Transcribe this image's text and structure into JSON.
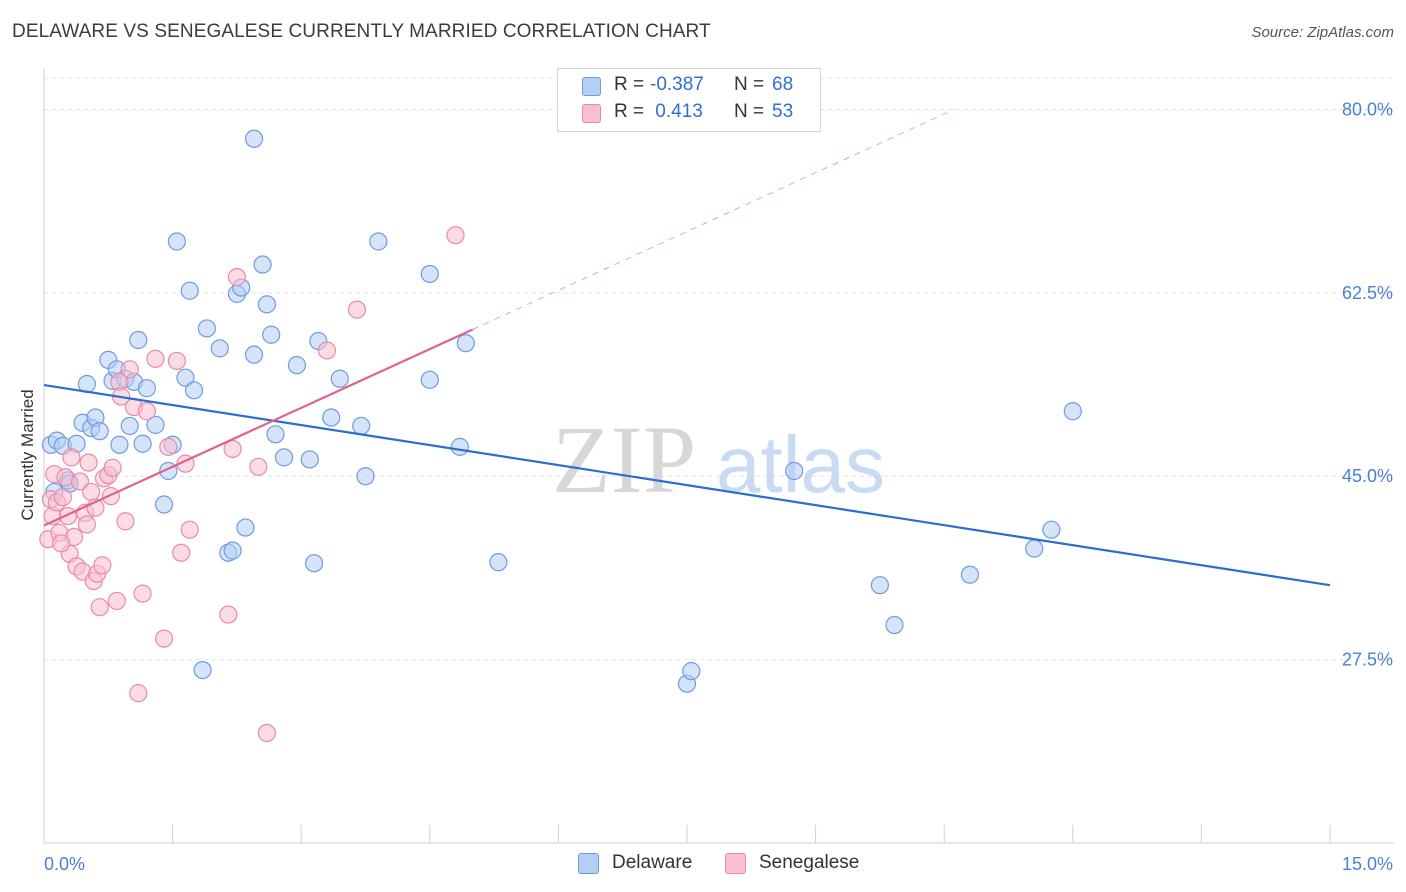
{
  "title": "DELAWARE VS SENEGALESE CURRENTLY MARRIED CORRELATION CHART",
  "source": "Source: ZipAtlas.com",
  "watermark": {
    "zip": "ZIP",
    "atlas": "atlas"
  },
  "legend": {
    "rows": [
      {
        "r_label": "R =",
        "r_value": "-0.387",
        "n_label": "N =",
        "n_value": "68"
      },
      {
        "r_label": "R =",
        "r_value": " 0.413",
        "n_label": "N =",
        "n_value": "53"
      }
    ]
  },
  "bottom_legend": [
    "Delaware",
    "Senegalese"
  ],
  "colors": {
    "delaware_fill": "#b5cef4",
    "delaware_stroke": "#6d9ce0",
    "delaware_line": "#2a6fd0",
    "senegalese_fill": "#f7bfd0",
    "senegalese_stroke": "#e98aa8",
    "senegalese_line": "#e0628c",
    "tick_text": "#4a7fd6",
    "grid": "#e3e3e3"
  },
  "chart_data": {
    "type": "scatter",
    "title": "DELAWARE VS SENEGALESE CURRENTLY MARRIED CORRELATION CHART",
    "xlabel": "",
    "ylabel": "Currently Married",
    "xlim": [
      0.0,
      15.0
    ],
    "ylim": [
      10.0,
      83.0
    ],
    "x_tick_labels": [
      "0.0%",
      "15.0%"
    ],
    "y_ticks": [
      27.5,
      45.0,
      62.5,
      80.0
    ],
    "y_tick_labels": [
      "27.5%",
      "45.0%",
      "62.5%",
      "80.0%"
    ],
    "grid": "horizontal dashed",
    "legend_position": "top-center",
    "series": [
      {
        "name": "Delaware",
        "trend": {
          "x": [
            0.0,
            15.0
          ],
          "y": [
            53.7,
            34.6
          ]
        },
        "points": [
          [
            0.08,
            48.0
          ],
          [
            0.15,
            48.4
          ],
          [
            0.22,
            47.9
          ],
          [
            0.28,
            44.6
          ],
          [
            0.38,
            48.1
          ],
          [
            0.45,
            50.1
          ],
          [
            0.5,
            53.8
          ],
          [
            0.55,
            49.6
          ],
          [
            0.6,
            50.6
          ],
          [
            0.65,
            49.3
          ],
          [
            0.75,
            56.1
          ],
          [
            0.8,
            54.1
          ],
          [
            0.85,
            55.2
          ],
          [
            0.88,
            48.0
          ],
          [
            0.95,
            54.3
          ],
          [
            1.0,
            49.8
          ],
          [
            1.05,
            54.0
          ],
          [
            1.1,
            58.0
          ],
          [
            1.15,
            48.1
          ],
          [
            1.2,
            53.4
          ],
          [
            1.3,
            49.9
          ],
          [
            1.4,
            42.3
          ],
          [
            1.45,
            45.5
          ],
          [
            1.5,
            48.0
          ],
          [
            1.55,
            67.4
          ],
          [
            1.65,
            54.4
          ],
          [
            1.7,
            62.7
          ],
          [
            1.75,
            53.2
          ],
          [
            1.85,
            26.5
          ],
          [
            1.9,
            59.1
          ],
          [
            2.05,
            57.2
          ],
          [
            2.15,
            37.7
          ],
          [
            2.2,
            37.9
          ],
          [
            2.25,
            62.4
          ],
          [
            2.3,
            63.0
          ],
          [
            2.35,
            40.1
          ],
          [
            2.45,
            56.6
          ],
          [
            2.45,
            77.2
          ],
          [
            2.55,
            65.2
          ],
          [
            2.6,
            61.4
          ],
          [
            2.65,
            58.5
          ],
          [
            2.7,
            49.0
          ],
          [
            2.8,
            46.8
          ],
          [
            2.95,
            55.6
          ],
          [
            3.1,
            46.6
          ],
          [
            3.15,
            36.7
          ],
          [
            3.2,
            57.9
          ],
          [
            3.35,
            50.6
          ],
          [
            3.45,
            54.3
          ],
          [
            3.7,
            49.8
          ],
          [
            3.75,
            45.0
          ],
          [
            3.9,
            67.4
          ],
          [
            4.5,
            64.3
          ],
          [
            4.5,
            54.2
          ],
          [
            4.85,
            47.8
          ],
          [
            4.92,
            57.7
          ],
          [
            5.3,
            36.8
          ],
          [
            7.5,
            25.2
          ],
          [
            7.55,
            26.4
          ],
          [
            8.75,
            45.5
          ],
          [
            9.75,
            34.6
          ],
          [
            9.92,
            30.8
          ],
          [
            10.8,
            35.6
          ],
          [
            11.55,
            38.1
          ],
          [
            11.75,
            39.9
          ],
          [
            12.0,
            51.2
          ],
          [
            0.12,
            43.5
          ],
          [
            0.3,
            44.3
          ]
        ]
      },
      {
        "name": "Senegalese",
        "trend": {
          "x": [
            0.0,
            5.0
          ],
          "y": [
            40.3,
            59.0
          ]
        },
        "points": [
          [
            0.05,
            39.0
          ],
          [
            0.08,
            42.8
          ],
          [
            0.1,
            41.2
          ],
          [
            0.12,
            45.2
          ],
          [
            0.15,
            42.5
          ],
          [
            0.18,
            39.6
          ],
          [
            0.22,
            43.0
          ],
          [
            0.25,
            44.9
          ],
          [
            0.28,
            41.2
          ],
          [
            0.3,
            37.6
          ],
          [
            0.32,
            46.8
          ],
          [
            0.35,
            39.2
          ],
          [
            0.38,
            36.4
          ],
          [
            0.42,
            44.5
          ],
          [
            0.45,
            35.9
          ],
          [
            0.48,
            41.5
          ],
          [
            0.5,
            40.4
          ],
          [
            0.52,
            46.3
          ],
          [
            0.55,
            43.5
          ],
          [
            0.58,
            35.0
          ],
          [
            0.62,
            35.7
          ],
          [
            0.65,
            32.5
          ],
          [
            0.68,
            36.5
          ],
          [
            0.7,
            44.8
          ],
          [
            0.75,
            45.1
          ],
          [
            0.78,
            43.1
          ],
          [
            0.8,
            45.8
          ],
          [
            0.85,
            33.1
          ],
          [
            0.88,
            54.0
          ],
          [
            0.9,
            52.6
          ],
          [
            0.95,
            40.7
          ],
          [
            1.0,
            55.2
          ],
          [
            1.05,
            51.6
          ],
          [
            1.1,
            24.3
          ],
          [
            1.15,
            33.8
          ],
          [
            1.2,
            51.2
          ],
          [
            1.3,
            56.2
          ],
          [
            1.4,
            29.5
          ],
          [
            1.45,
            47.8
          ],
          [
            1.55,
            56.0
          ],
          [
            1.6,
            37.7
          ],
          [
            1.65,
            46.2
          ],
          [
            1.7,
            39.9
          ],
          [
            2.15,
            31.8
          ],
          [
            2.2,
            47.6
          ],
          [
            2.25,
            64.0
          ],
          [
            2.5,
            45.9
          ],
          [
            2.6,
            20.5
          ],
          [
            3.3,
            57.0
          ],
          [
            3.65,
            60.9
          ],
          [
            4.8,
            68.0
          ],
          [
            0.2,
            38.6
          ],
          [
            0.6,
            42.0
          ]
        ]
      }
    ]
  }
}
